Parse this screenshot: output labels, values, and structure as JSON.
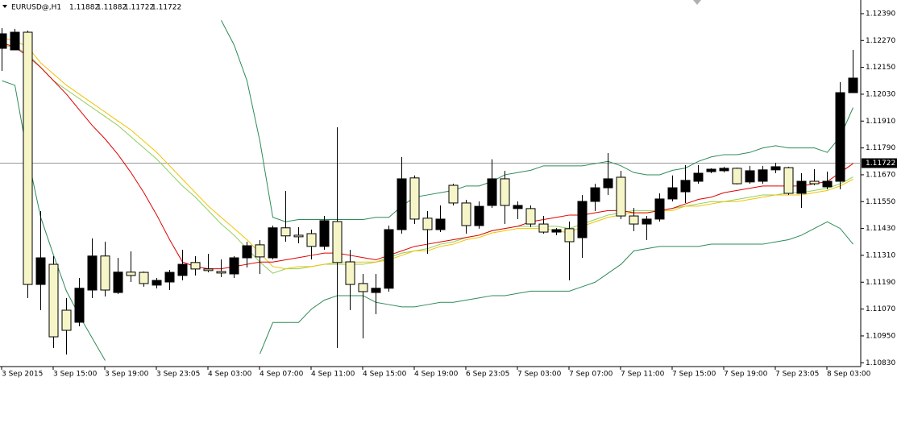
{
  "chart_data": {
    "type": "candlestick",
    "header": {
      "symbol": "EURUSD@,H1",
      "values": [
        1.11882,
        1.11882,
        1.11722,
        1.11722
      ]
    },
    "categories": [
      "3 Sep 2015",
      null,
      null,
      null,
      "3 Sep 15:00",
      null,
      null,
      null,
      "3 Sep 19:00",
      null,
      null,
      null,
      "3 Sep 23:05",
      null,
      null,
      null,
      "4 Sep 03:00",
      null,
      null,
      null,
      "4 Sep 07:00",
      null,
      null,
      null,
      "4 Sep 11:00",
      null,
      null,
      null,
      "4 Sep 15:00",
      null,
      null,
      null,
      "4 Sep 19:00",
      null,
      null,
      null,
      "6 Sep 23:05",
      null,
      null,
      null,
      "7 Sep 03:00",
      null,
      null,
      null,
      "7 Sep 07:00",
      null,
      null,
      null,
      "7 Sep 11:00",
      null,
      null,
      null,
      "7 Sep 15:00",
      null,
      null,
      null,
      "7 Sep 19:00",
      null,
      null,
      null,
      "7 Sep 23:05",
      null,
      null,
      null,
      "8 Sep 03:00",
      null,
      null
    ],
    "open": [
      1.123,
      1.12307,
      1.1118,
      1.11299,
      1.10946,
      1.10975,
      1.11163,
      1.11307,
      1.11155,
      1.11235,
      1.1122,
      1.11184,
      1.11198,
      1.11234,
      1.1127,
      1.11249,
      1.11242,
      1.11231,
      1.11299,
      1.11353,
      1.11303,
      1.11433,
      1.11397,
      1.11393,
      1.1135,
      1.11465,
      1.11278,
      1.1118,
      1.11148,
      1.11163,
      1.11425,
      1.11652,
      1.11472,
      1.11425,
      1.11472,
      1.11544,
      1.11443,
      1.11529,
      1.11652,
      1.11533,
      1.11533,
      1.1145,
      1.11414,
      1.11425,
      1.11371,
      1.11551,
      1.11612,
      1.11652,
      1.11486,
      1.1145,
      1.11472,
      1.11562,
      1.11612,
      1.11645,
      1.11677,
      1.11695,
      1.11699,
      1.1163,
      1.11688,
      1.11692,
      1.11706,
      1.11587,
      1.11641,
      1.1163,
      1.11641,
      1.12037,
      1.12102
    ],
    "high": [
      1.12325,
      1.12322,
      1.12314,
      1.11508,
      1.11306,
      1.11119,
      1.11209,
      1.11386,
      1.11371,
      1.11299,
      1.11328,
      1.11238,
      1.11209,
      1.11245,
      1.11335,
      1.11306,
      1.11317,
      1.11292,
      1.11306,
      1.11371,
      1.11378,
      1.11443,
      1.11598,
      1.11436,
      1.11425,
      1.11486,
      1.11882,
      1.11335,
      1.11227,
      1.11227,
      1.11443,
      1.11749,
      1.11667,
      1.11508,
      1.11533,
      1.1163,
      1.11558,
      1.11551,
      1.11739,
      1.11688,
      1.11551,
      1.11533,
      1.11486,
      1.11432,
      1.11461,
      1.1158,
      1.1163,
      1.11767,
      1.11688,
      1.11522,
      1.11486,
      1.11587,
      1.11667,
      1.11713,
      1.11713,
      1.11699,
      1.11706,
      1.11702,
      1.1171,
      1.1171,
      1.11724,
      1.11706,
      1.11677,
      1.11695,
      1.11684,
      1.12084,
      1.12228
    ],
    "low": [
      1.12134,
      1.12228,
      1.11119,
      1.11065,
      1.10896,
      1.10867,
      1.10993,
      1.11119,
      1.11126,
      1.11137,
      1.11191,
      1.1117,
      1.11162,
      1.11155,
      1.11198,
      1.1122,
      1.11234,
      1.11213,
      1.11209,
      1.11256,
      1.11227,
      1.11292,
      1.11371,
      1.11364,
      1.11292,
      1.11335,
      1.10896,
      1.11065,
      1.10939,
      1.11047,
      1.11148,
      1.11407,
      1.1145,
      1.11317,
      1.11414,
      1.11533,
      1.11407,
      1.11429,
      1.11522,
      1.1145,
      1.11472,
      1.11436,
      1.11407,
      1.114,
      1.11198,
      1.11299,
      1.11508,
      1.1158,
      1.11472,
      1.11418,
      1.11378,
      1.11461,
      1.11551,
      1.11544,
      1.1163,
      1.11677,
      1.11681,
      1.11627,
      1.1163,
      1.1163,
      1.11677,
      1.1158,
      1.11522,
      1.11623,
      1.11605,
      1.11605,
      1.12037
    ],
    "close": [
      1.12235,
      1.12228,
      1.12307,
      1.1118,
      1.1127,
      1.11065,
      1.11011,
      1.11155,
      1.11307,
      1.11144,
      1.11235,
      1.11234,
      1.11177,
      1.11191,
      1.1122,
      1.11278,
      1.11249,
      1.11238,
      1.11227,
      1.11299,
      1.11357,
      1.11299,
      1.11433,
      1.114,
      1.11407,
      1.1135,
      1.11461,
      1.11281,
      1.11184,
      1.11144,
      1.11163,
      1.11425,
      1.11656,
      1.11476,
      1.11425,
      1.11623,
      1.11544,
      1.11443,
      1.11533,
      1.11652,
      1.11519,
      1.11519,
      1.1145,
      1.11414,
      1.11429,
      1.11389,
      1.11551,
      1.11612,
      1.11659,
      1.11486,
      1.1145,
      1.11472,
      1.11562,
      1.11594,
      1.11641,
      1.11684,
      1.11688,
      1.11699,
      1.11638,
      1.11641,
      1.11692,
      1.11702,
      1.11587,
      1.11641,
      1.11616,
      1.11641,
      1.12037
    ],
    "bull_color": "#f5f5c8",
    "bear_color": "#000000",
    "lines": [
      {
        "color": "#2e8b57",
        "values": [
          null,
          null,
          null,
          null,
          null,
          null,
          null,
          null,
          null,
          null,
          null,
          null,
          null,
          null,
          null,
          null,
          null,
          1.1236,
          1.1225,
          1.1209,
          1.1182,
          1.1148,
          1.1146,
          1.1147,
          1.1147,
          1.1147,
          1.1147,
          1.1147,
          1.1147,
          1.1148,
          1.1148,
          1.1153,
          1.1157,
          1.1158,
          1.1159,
          1.116,
          1.1162,
          1.1162,
          1.1164,
          1.1167,
          1.1168,
          1.1169,
          1.1171,
          1.1171,
          1.1171,
          1.1171,
          1.1172,
          1.1173,
          1.1171,
          1.1168,
          1.1167,
          1.1167,
          1.1169,
          1.117,
          1.1173,
          1.1175,
          1.1176,
          1.1176,
          1.1177,
          1.1179,
          1.118,
          1.1179,
          1.1179,
          1.1179,
          1.1177,
          1.1184,
          1.1197
        ]
      },
      {
        "color": "#2e8b57",
        "values": [
          1.1209,
          1.1207,
          1.1175,
          1.1148,
          1.1131,
          1.1115,
          1.1104,
          1.1094,
          1.1084,
          null,
          null,
          null,
          null,
          null,
          null,
          null,
          null,
          null,
          null,
          null,
          1.1087,
          1.1101,
          1.1101,
          1.1101,
          1.1107,
          1.1111,
          1.1113,
          1.1113,
          1.1113,
          1.111,
          1.1109,
          1.1108,
          1.1108,
          1.1109,
          1.111,
          1.111,
          1.1111,
          1.1112,
          1.1113,
          1.1113,
          1.1114,
          1.1115,
          1.1115,
          1.1115,
          1.1115,
          1.1117,
          1.1119,
          1.1123,
          1.1127,
          1.1133,
          1.1134,
          1.1135,
          1.1135,
          1.1135,
          1.1135,
          1.1136,
          1.1136,
          1.1136,
          1.1136,
          1.1136,
          1.1137,
          1.1138,
          1.114,
          1.1143,
          1.1146,
          1.1143,
          1.1136
        ]
      },
      {
        "color": "#8fce5a",
        "values": [
          1.1225,
          1.1224,
          1.1221,
          1.1215,
          1.1209,
          1.1205,
          1.1201,
          1.1197,
          1.1193,
          1.1189,
          1.1184,
          1.1179,
          1.1174,
          1.1168,
          1.1162,
          1.1157,
          1.1151,
          1.1145,
          1.114,
          1.1134,
          1.1128,
          1.1123,
          1.1125,
          1.1125,
          1.1126,
          1.1127,
          1.1127,
          1.1127,
          1.1127,
          1.1128,
          1.113,
          1.1132,
          1.1133,
          1.1134,
          1.1136,
          1.1137,
          1.1139,
          1.114,
          1.1142,
          1.1143,
          1.1144,
          1.1144,
          1.1144,
          1.1144,
          1.1143,
          1.1145,
          1.1147,
          1.1149,
          1.115,
          1.1151,
          1.1151,
          1.1151,
          1.1152,
          1.1153,
          1.1154,
          1.1155,
          1.1155,
          1.1156,
          1.1157,
          1.1158,
          1.1158,
          1.1159,
          1.1159,
          1.116,
          1.1161,
          1.1163,
          1.1166
        ]
      },
      {
        "color": "#f2c200",
        "values": [
          1.1228,
          1.1227,
          1.1224,
          1.1217,
          1.1212,
          1.1207,
          1.1203,
          1.1199,
          1.1195,
          1.1191,
          1.1187,
          1.1182,
          1.1177,
          1.1171,
          1.1165,
          1.1159,
          1.1153,
          1.1148,
          1.1143,
          1.1138,
          1.1132,
          1.1126,
          1.1125,
          1.1126,
          1.1126,
          1.1127,
          1.1128,
          1.1128,
          1.1128,
          1.1128,
          1.1129,
          1.1131,
          1.1133,
          1.1133,
          1.1135,
          1.1136,
          1.1138,
          1.1139,
          1.1141,
          1.1142,
          1.1143,
          1.1143,
          1.1143,
          1.1142,
          1.1141,
          1.1144,
          1.1146,
          1.1148,
          1.1149,
          1.115,
          1.115,
          1.1151,
          1.1151,
          1.1153,
          1.1153,
          1.1154,
          1.1155,
          1.1155,
          1.1156,
          1.1157,
          1.1158,
          1.1158,
          1.1158,
          1.1159,
          1.116,
          1.1162,
          1.1165
        ]
      },
      {
        "color": "#e00000",
        "values": [
          1.1226,
          1.1224,
          1.122,
          1.1215,
          1.1209,
          1.1203,
          1.1196,
          1.1189,
          1.1183,
          1.1176,
          1.1168,
          1.1159,
          1.1149,
          1.1138,
          1.1128,
          1.1126,
          1.1125,
          1.1125,
          1.1126,
          1.1127,
          1.1128,
          1.1128,
          1.1129,
          1.113,
          1.1131,
          1.1132,
          1.1132,
          1.1131,
          1.113,
          1.1129,
          1.1131,
          1.1133,
          1.1135,
          1.1136,
          1.1137,
          1.1138,
          1.1139,
          1.114,
          1.1142,
          1.1143,
          1.1144,
          1.1146,
          1.1147,
          1.1148,
          1.1149,
          1.1149,
          1.115,
          1.1151,
          1.1151,
          1.115,
          1.115,
          1.1151,
          1.1152,
          1.1154,
          1.1156,
          1.1157,
          1.1159,
          1.116,
          1.1161,
          1.1162,
          1.1162,
          1.1162,
          1.1162,
          1.1163,
          1.1164,
          1.1168,
          1.1172
        ]
      }
    ],
    "current_price": 1.11722,
    "ylim": [
      1.10813,
      1.12451
    ],
    "yticks": [
      {
        "value": 1.1239,
        "label": "1.12390"
      },
      {
        "value": 1.1227,
        "label": "1.12270"
      },
      {
        "value": 1.1215,
        "label": "1.12150"
      },
      {
        "value": 1.1203,
        "label": "1.12030"
      },
      {
        "value": 1.1191,
        "label": "1.11910"
      },
      {
        "value": 1.1179,
        "label": "1.11790"
      },
      {
        "value": 1.1167,
        "label": "1.11670"
      },
      {
        "value": 1.1155,
        "label": "1.11550"
      },
      {
        "value": 1.1143,
        "label": "1.11430"
      },
      {
        "value": 1.1131,
        "label": "1.11310"
      },
      {
        "value": 1.1119,
        "label": "1.11190"
      },
      {
        "value": 1.1107,
        "label": "1.11070"
      },
      {
        "value": 1.1095,
        "label": "1.10950"
      },
      {
        "value": 1.1083,
        "label": "1.10830"
      }
    ]
  }
}
